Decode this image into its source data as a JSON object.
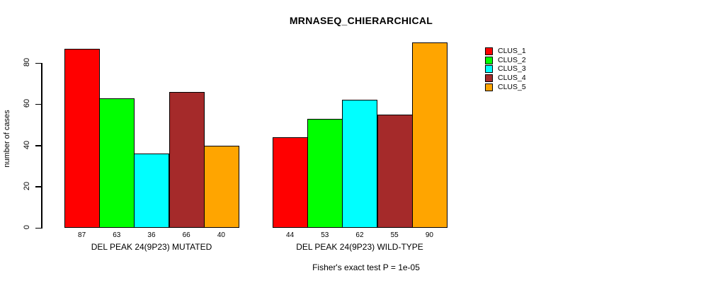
{
  "chart_data": {
    "type": "bar",
    "title": "MRNASEQ_CHIERARCHICAL",
    "ylabel": "number of cases",
    "xlabel": "",
    "yticks": [
      0,
      20,
      40,
      60,
      80
    ],
    "ylim": [
      0,
      80
    ],
    "grid": false,
    "bar_value_labels_shown": true,
    "legend_position": "right",
    "categories": [
      "CLUS_1",
      "CLUS_2",
      "CLUS_3",
      "CLUS_4",
      "CLUS_5"
    ],
    "groups": [
      {
        "label": "DEL PEAK 24(9P23) MUTATED",
        "values": [
          87,
          63,
          36,
          66,
          40
        ]
      },
      {
        "label": "DEL PEAK 24(9P23) WILD-TYPE",
        "values": [
          44,
          53,
          62,
          55,
          90
        ]
      }
    ],
    "legend": [
      {
        "label": "CLUS_1",
        "color": "#ff0000"
      },
      {
        "label": "CLUS_2",
        "color": "#00ff00"
      },
      {
        "label": "CLUS_3",
        "color": "#00ffff"
      },
      {
        "label": "CLUS_4",
        "color": "#a52a2a"
      },
      {
        "label": "CLUS_5",
        "color": "#ffa500"
      }
    ],
    "annotation": "Fisher's exact test P = 1e-05"
  }
}
